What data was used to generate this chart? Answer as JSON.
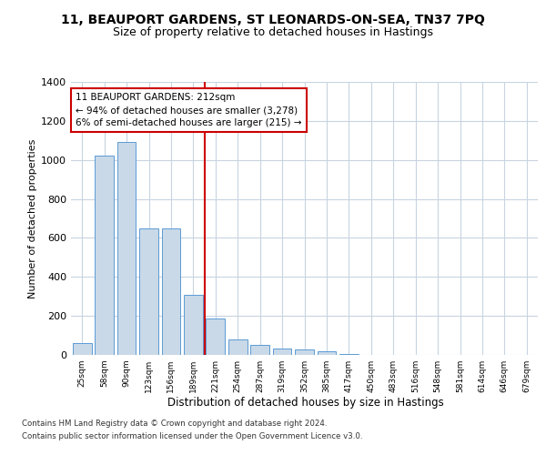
{
  "title1": "11, BEAUPORT GARDENS, ST LEONARDS-ON-SEA, TN37 7PQ",
  "title2": "Size of property relative to detached houses in Hastings",
  "xlabel": "Distribution of detached houses by size in Hastings",
  "ylabel": "Number of detached properties",
  "categories": [
    "25sqm",
    "58sqm",
    "90sqm",
    "123sqm",
    "156sqm",
    "189sqm",
    "221sqm",
    "254sqm",
    "287sqm",
    "319sqm",
    "352sqm",
    "385sqm",
    "417sqm",
    "450sqm",
    "483sqm",
    "516sqm",
    "548sqm",
    "581sqm",
    "614sqm",
    "646sqm",
    "679sqm"
  ],
  "values": [
    60,
    1020,
    1090,
    650,
    650,
    310,
    185,
    80,
    50,
    35,
    30,
    20,
    5,
    2,
    2,
    1,
    1,
    0,
    0,
    0,
    0
  ],
  "bar_color": "#c9d9e8",
  "bar_edge_color": "#5b9bd5",
  "annotation_text": "11 BEAUPORT GARDENS: 212sqm\n← 94% of detached houses are smaller (3,278)\n6% of semi-detached houses are larger (215) →",
  "annotation_box_color": "#ffffff",
  "annotation_box_edge": "#cc0000",
  "vline_color": "#cc0000",
  "vline_x_index": 6,
  "ylim": [
    0,
    1400
  ],
  "yticks": [
    0,
    200,
    400,
    600,
    800,
    1000,
    1200,
    1400
  ],
  "footer": "Contains HM Land Registry data © Crown copyright and database right 2024.\nContains public sector information licensed under the Open Government Licence v3.0.",
  "bg_color": "#ffffff",
  "grid_color": "#c8d4e0",
  "title1_fontsize": 10,
  "title2_fontsize": 9,
  "xlabel_fontsize": 8.5,
  "ylabel_fontsize": 8
}
